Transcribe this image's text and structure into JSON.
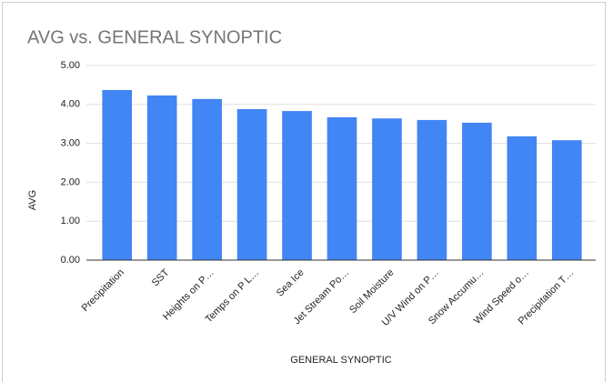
{
  "chart_data": {
    "type": "bar",
    "title": "AVG vs. GENERAL SYNOPTIC",
    "x_label": "GENERAL SYNOPTIC",
    "y_label": "AVG",
    "categories": [
      "Precipitation",
      "SST",
      "Heights on P…",
      "Temps on P L…",
      "Sea Ice",
      "Jet Stream Po…",
      "Soil Moisture",
      "U/V Wind on P…",
      "Snow Accumu…",
      "Wind Speed o…",
      "Precipitation T…"
    ],
    "values": [
      4.37,
      4.23,
      4.14,
      3.88,
      3.83,
      3.67,
      3.64,
      3.6,
      3.53,
      3.18,
      3.08
    ],
    "color": "#4285f4",
    "ylim": [
      0,
      5
    ],
    "yticks": [
      {
        "value": 0,
        "label": "0.00"
      },
      {
        "value": 1,
        "label": "1.00"
      },
      {
        "value": 2,
        "label": "2.00"
      },
      {
        "value": 3,
        "label": "3.00"
      },
      {
        "value": 4,
        "label": "4.00"
      },
      {
        "value": 5,
        "label": "5.00"
      }
    ],
    "grid": true
  }
}
